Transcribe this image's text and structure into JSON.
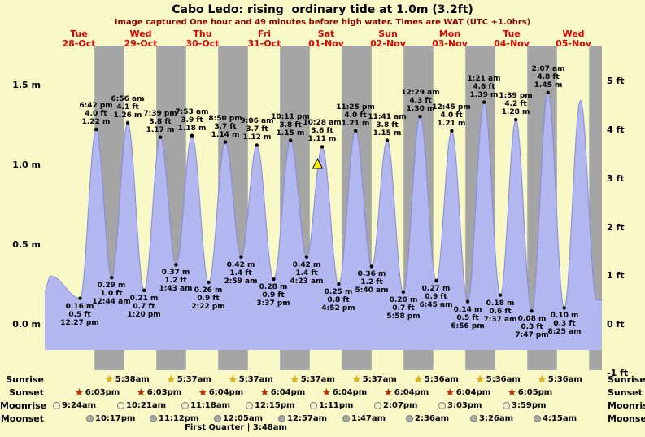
{
  "title": "Cabo Ledo: rising  ordinary tide at 1.0m (3.2ft)",
  "subtitle": "Image captured One hour and 49 minutes before high water. Times are WAT (UTC +1.0hrs)",
  "day_labels": [
    {
      "name": "Tue",
      "date": "28-Oct"
    },
    {
      "name": "Wed",
      "date": "29-Oct"
    },
    {
      "name": "Thu",
      "date": "30-Oct"
    },
    {
      "name": "Fri",
      "date": "31-Oct"
    },
    {
      "name": "Sat",
      "date": "01-Nov"
    },
    {
      "name": "Sun",
      "date": "02-Nov"
    },
    {
      "name": "Mon",
      "date": "03-Nov"
    },
    {
      "name": "Tue",
      "date": "04-Nov"
    },
    {
      "name": "Wed",
      "date": "05-Nov"
    }
  ],
  "axes": {
    "left_ticks": [
      {
        "label": "1.5 m",
        "m": 1.5
      },
      {
        "label": "1.0 m",
        "m": 1.0
      },
      {
        "label": "0.5 m",
        "m": 0.5
      },
      {
        "label": "0.0 m",
        "m": 0.0
      }
    ],
    "right_ticks": [
      {
        "label": "5 ft",
        "ft": 5
      },
      {
        "label": "4 ft",
        "ft": 4
      },
      {
        "label": "3 ft",
        "ft": 3
      },
      {
        "label": "2 ft",
        "ft": 2
      },
      {
        "label": "1 ft",
        "ft": 1
      },
      {
        "label": "0 ft",
        "ft": 0
      },
      {
        "label": "-1 ft",
        "ft": -1
      }
    ]
  },
  "chart_data": {
    "type": "area",
    "title": "Cabo Ledo tide height curve, Tue 28-Oct to Wed 05-Nov",
    "x_unit": "hours since Tue 28-Oct 00:00 WAT",
    "y_unit": "m",
    "x_range": [
      -1.26,
      215.05
    ],
    "y_range": [
      -0.3,
      1.74
    ],
    "high_tides": [
      {
        "t": 18.7,
        "height_m": 1.22,
        "time": "6:42 pm",
        "ft": "4.0 ft",
        "m": "1.22 m"
      },
      {
        "t": 30.933,
        "height_m": 1.26,
        "time": "6:56 am",
        "ft": "4.1 ft",
        "m": "1.26 m"
      },
      {
        "t": 43.65,
        "height_m": 1.17,
        "time": "7:39 pm",
        "ft": "3.8 ft",
        "m": "1.17 m"
      },
      {
        "t": 55.883,
        "height_m": 1.18,
        "time": "7:53 am",
        "ft": "3.9 ft",
        "m": "1.18 m"
      },
      {
        "t": 68.833,
        "height_m": 1.14,
        "time": "8:50 pm",
        "ft": "3.7 ft",
        "m": "1.14 m"
      },
      {
        "t": 81.1,
        "height_m": 1.12,
        "time": "9:06 am",
        "ft": "3.7 ft",
        "m": "1.12 m"
      },
      {
        "t": 94.183,
        "height_m": 1.15,
        "time": "10:11 pm",
        "ft": "3.8 ft",
        "m": "1.15 m"
      },
      {
        "t": 106.467,
        "height_m": 1.11,
        "time": "10:28 am",
        "ft": "3.6 ft",
        "m": "1.11 m"
      },
      {
        "t": 119.417,
        "height_m": 1.21,
        "time": "11:25 pm",
        "ft": "4.0 ft",
        "m": "1.21 m"
      },
      {
        "t": 131.683,
        "height_m": 1.15,
        "time": "11:41 am",
        "ft": "3.8 ft",
        "m": "1.15 m"
      },
      {
        "t": 144.483,
        "height_m": 1.3,
        "time": "12:29 am",
        "ft": "4.3 ft",
        "m": "1.30 m"
      },
      {
        "t": 156.75,
        "height_m": 1.21,
        "time": "12:45 pm",
        "ft": "4.0 ft",
        "m": "1.21 m"
      },
      {
        "t": 169.35,
        "height_m": 1.39,
        "time": "1:21 am",
        "ft": "4.6 ft",
        "m": "1.39 m"
      },
      {
        "t": 181.65,
        "height_m": 1.28,
        "time": "1:39 pm",
        "ft": "4.2 ft",
        "m": "1.28 m"
      },
      {
        "t": 194.117,
        "height_m": 1.45,
        "time": "2:07 am",
        "ft": "4.8 ft",
        "m": "1.45 m"
      }
    ],
    "low_tides": [
      {
        "t": 12.45,
        "height_m": 0.16,
        "time": "12:27 pm",
        "ft": "0.5 ft",
        "m": "0.16 m"
      },
      {
        "t": 24.733,
        "height_m": 0.29,
        "time": "12:44 am",
        "ft": "1.0 ft",
        "m": "0.29 m"
      },
      {
        "t": 37.333,
        "height_m": 0.21,
        "time": "1:20 pm",
        "ft": "0.7 ft",
        "m": "0.21 m"
      },
      {
        "t": 49.717,
        "height_m": 0.37,
        "time": "1:43 am",
        "ft": "1.2 ft",
        "m": "0.37 m"
      },
      {
        "t": 62.367,
        "height_m": 0.26,
        "time": "2:22 pm",
        "ft": "0.9 ft",
        "m": "0.26 m"
      },
      {
        "t": 74.983,
        "height_m": 0.42,
        "time": "2:59 am",
        "ft": "1.4 ft",
        "m": "0.42 m"
      },
      {
        "t": 87.617,
        "height_m": 0.28,
        "time": "3:37 pm",
        "ft": "0.9 ft",
        "m": "0.28 m"
      },
      {
        "t": 100.383,
        "height_m": 0.42,
        "time": "4:23 am",
        "ft": "1.4 ft",
        "m": "0.42 m"
      },
      {
        "t": 112.867,
        "height_m": 0.25,
        "time": "4:52 pm",
        "ft": "0.8 ft",
        "m": "0.25 m"
      },
      {
        "t": 125.667,
        "height_m": 0.36,
        "time": "5:40 am",
        "ft": "1.2 ft",
        "m": "0.36 m"
      },
      {
        "t": 137.967,
        "height_m": 0.2,
        "time": "5:58 pm",
        "ft": "0.7 ft",
        "m": "0.20 m"
      },
      {
        "t": 150.75,
        "height_m": 0.27,
        "time": "6:45 am",
        "ft": "0.9 ft",
        "m": "0.27 m"
      },
      {
        "t": 162.933,
        "height_m": 0.14,
        "time": "6:56 pm",
        "ft": "0.5 ft",
        "m": "0.14 m"
      },
      {
        "t": 175.617,
        "height_m": 0.18,
        "time": "7:37 am",
        "ft": "0.6 ft",
        "m": "0.18 m"
      },
      {
        "t": 187.783,
        "height_m": 0.08,
        "time": "7:47 pm",
        "ft": "0.3 ft",
        "m": "0.08 m"
      },
      {
        "t": 200.417,
        "height_m": 0.1,
        "time": "8:25 am",
        "ft": "0.3 ft",
        "m": "0.10 m"
      }
    ],
    "edge_extremes": [
      [
        -1.5,
        0.2
      ],
      [
        1.0,
        0.3
      ],
      [
        206.75,
        1.4
      ],
      [
        213.0,
        0.15
      ]
    ],
    "night_bands": [
      [
        18.05,
        29.633
      ],
      [
        42.05,
        53.617
      ],
      [
        66.067,
        77.617
      ],
      [
        90.067,
        101.617
      ],
      [
        114.067,
        125.617
      ],
      [
        138.067,
        149.6
      ],
      [
        162.067,
        173.6
      ],
      [
        186.083,
        197.6
      ],
      [
        210.083,
        215.05
      ]
    ],
    "current_marker": {
      "t": 104.65,
      "height_m": 1.0,
      "note": "rising tide at 1.0m"
    },
    "colors": {
      "background": "#f9f9c7",
      "night_band": "#a5a5a5",
      "tide_fill": "#b3b7ef",
      "tide_stroke": "#8289dd",
      "day_label": "#e80000",
      "subtitle": "#8b0000",
      "marker_fill": "#ffee00",
      "dot": "#000000"
    }
  },
  "astro": {
    "rows": [
      {
        "id": "sunrise",
        "label": "Sunrise",
        "icon": "star",
        "color": "#e8b400",
        "events": [
          {
            "t": 29.633,
            "time": "5:38am"
          },
          {
            "t": 53.617,
            "time": "5:37am"
          },
          {
            "t": 77.617,
            "time": "5:37am"
          },
          {
            "t": 101.617,
            "time": "5:37am"
          },
          {
            "t": 125.617,
            "time": "5:37am"
          },
          {
            "t": 149.6,
            "time": "5:36am"
          },
          {
            "t": 173.6,
            "time": "5:36am"
          },
          {
            "t": 197.6,
            "time": "5:36am"
          }
        ]
      },
      {
        "id": "sunset",
        "label": "Sunset",
        "icon": "star",
        "color": "#cc2200",
        "events": [
          {
            "t": 18.05,
            "time": "6:03pm"
          },
          {
            "t": 42.05,
            "time": "6:03pm"
          },
          {
            "t": 66.067,
            "time": "6:04pm"
          },
          {
            "t": 90.067,
            "time": "6:04pm"
          },
          {
            "t": 114.067,
            "time": "6:04pm"
          },
          {
            "t": 138.067,
            "time": "6:04pm"
          },
          {
            "t": 162.067,
            "time": "6:04pm"
          },
          {
            "t": 186.083,
            "time": "6:05pm"
          }
        ]
      },
      {
        "id": "moonrise",
        "label": "Moonrise",
        "icon": "circle",
        "color": "#f6f1c8",
        "events": [
          {
            "t": 9.4,
            "time": "9:24am"
          },
          {
            "t": 34.35,
            "time": "10:21am"
          },
          {
            "t": 59.3,
            "time": "11:18am"
          },
          {
            "t": 84.25,
            "time": "12:15pm"
          },
          {
            "t": 109.183,
            "time": "1:11pm"
          },
          {
            "t": 134.117,
            "time": "2:07pm"
          },
          {
            "t": 159.05,
            "time": "3:03pm"
          },
          {
            "t": 183.983,
            "time": "3:59pm"
          }
        ]
      },
      {
        "id": "moonset",
        "label": "Moonset",
        "icon": "circle",
        "color": "#a8a8a8",
        "events": [
          {
            "t": 22.283,
            "time": "10:17pm"
          },
          {
            "t": 47.2,
            "time": "11:12pm"
          },
          {
            "t": 72.083,
            "time": "12:05am"
          },
          {
            "t": 96.95,
            "time": "12:57am"
          },
          {
            "t": 121.783,
            "time": "1:47am"
          },
          {
            "t": 146.6,
            "time": "2:36am"
          },
          {
            "t": 171.433,
            "time": "3:26am"
          },
          {
            "t": 196.25,
            "time": "4:15am"
          }
        ]
      }
    ],
    "moon_phase": "First Quarter | 3:48am"
  }
}
